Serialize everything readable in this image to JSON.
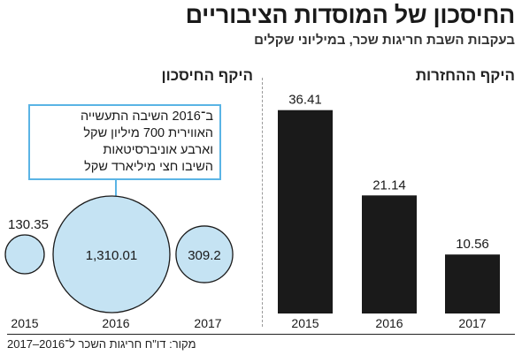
{
  "header": {
    "title": "החיסכון של המוסדות הציבוריים",
    "subtitle": "בעקבות השבת חריגות שכר, במיליוני שקלים"
  },
  "colors": {
    "bar": "#1a1a1a",
    "bubble_fill": "#c5e3f3",
    "bubble_stroke": "#1a1a1a",
    "callout_border": "#5ab4e5"
  },
  "callout": {
    "lines": [
      "ב־2016 השיבה התעשייה",
      "האווירית 700 מיליון שקל",
      "וארבע אוניברסיטאות",
      "השיבו חצי מיליארד שקל"
    ]
  },
  "source": "מקור: דו\"ח חריגות השכר ל־2016–2017",
  "chart_data": [
    {
      "type": "scatter",
      "title": "היקף החיסכון",
      "categories": [
        "2015",
        "2016",
        "2017"
      ],
      "values": [
        130.35,
        1310.01,
        309.2
      ],
      "value_labels": [
        "130.35",
        "1,310.01",
        "309.2"
      ],
      "encoding": "bubble area",
      "grid": false
    },
    {
      "type": "bar",
      "title": "היקף ההחזרות",
      "categories": [
        "2015",
        "2016",
        "2017"
      ],
      "values": [
        36.41,
        21.14,
        10.56
      ],
      "value_labels": [
        "36.41",
        "21.14",
        "10.56"
      ],
      "ylim": [
        0,
        40
      ],
      "grid": false
    }
  ]
}
